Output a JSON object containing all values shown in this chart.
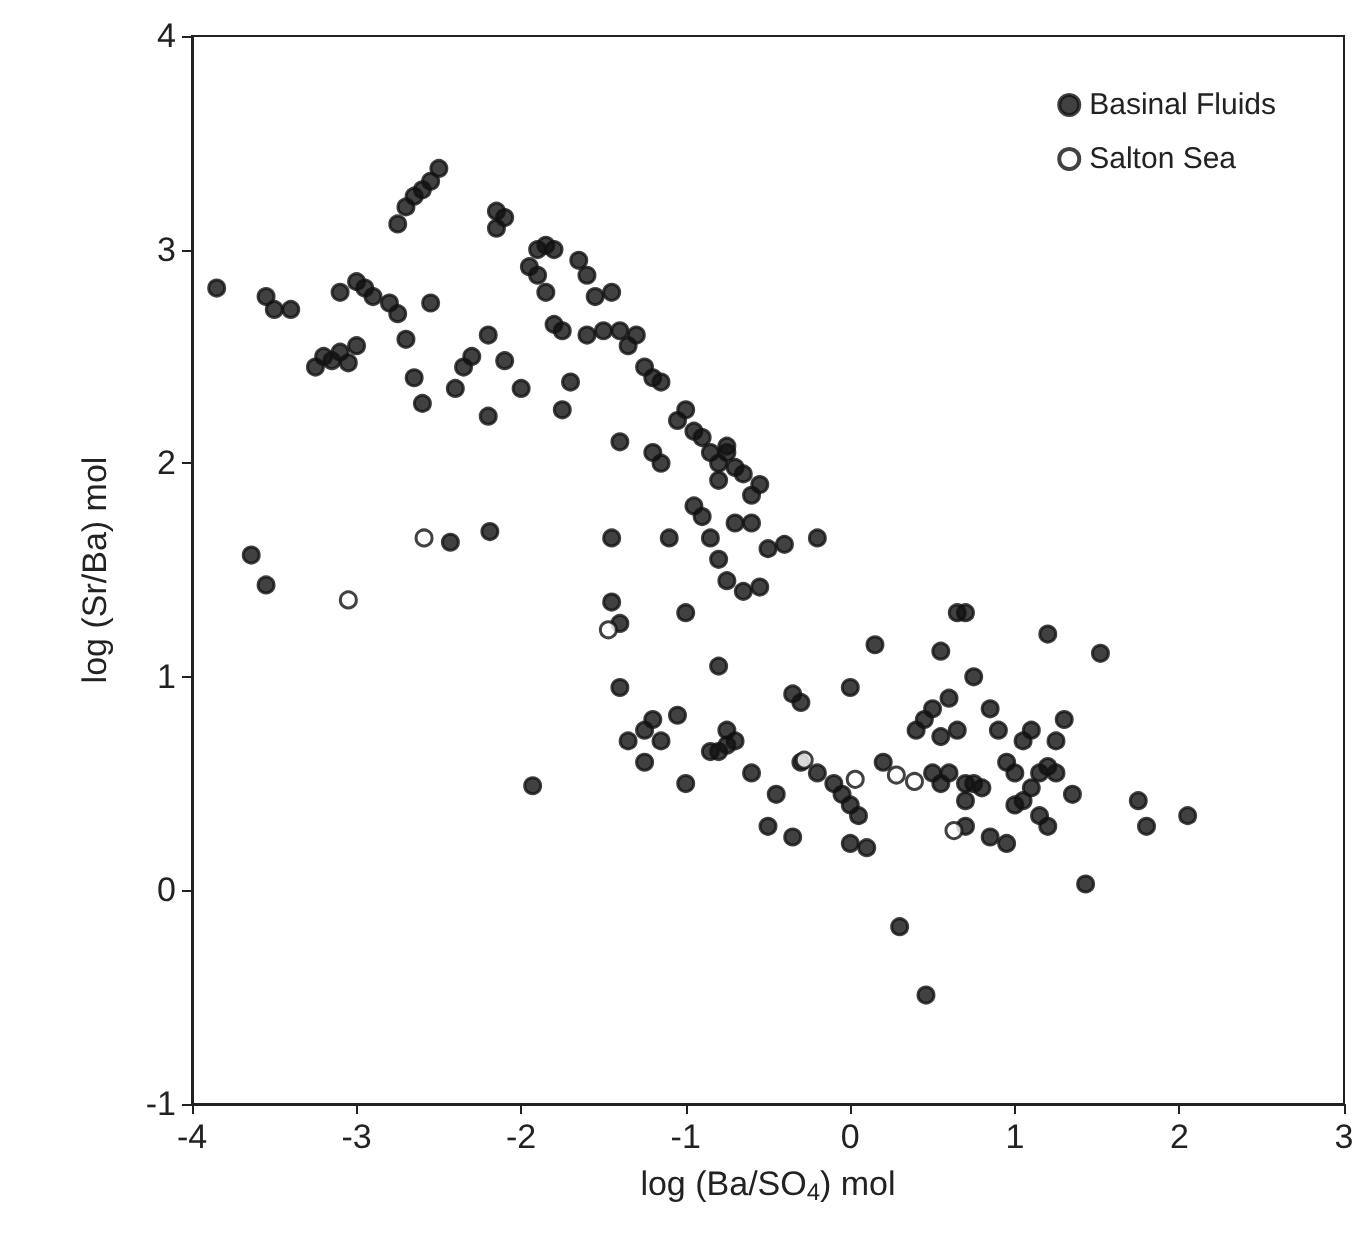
{
  "chart_data": {
    "type": "scatter",
    "xlabel": "log (Ba/SO$_{4}$) mol",
    "ylabel": "log (Sr/Ba) mol",
    "xlim": [
      -4,
      3
    ],
    "ylim": [
      -1,
      4
    ],
    "xticks": [
      -4,
      -3,
      -2,
      -1,
      0,
      1,
      2,
      3
    ],
    "yticks": [
      -1,
      0,
      1,
      2,
      3,
      4
    ],
    "grid": false,
    "legend": "top right",
    "marker": "circle",
    "series": [
      {
        "name": "Basinal Fluids",
        "color": "#111111",
        "x": [
          -3.85,
          -3.55,
          -3.5,
          -3.4,
          -3.64,
          -3.55,
          -3.25,
          -3.2,
          -3.15,
          -3.1,
          -3.05,
          -3.0,
          -3.1,
          -3.0,
          -2.95,
          -2.9,
          -2.8,
          -2.75,
          -2.75,
          -2.7,
          -2.65,
          -2.6,
          -2.55,
          -2.5,
          -2.55,
          -2.7,
          -2.65,
          -2.6,
          -2.4,
          -2.35,
          -2.3,
          -2.43,
          -2.2,
          -2.2,
          -2.15,
          -2.1,
          -2.15,
          -2.1,
          -2.19,
          -2.0,
          -1.95,
          -1.9,
          -1.85,
          -1.8,
          -1.9,
          -1.85,
          -1.8,
          -1.75,
          -1.7,
          -1.75,
          -1.93,
          -1.65,
          -1.6,
          -1.55,
          -1.6,
          -1.5,
          -1.45,
          -1.4,
          -1.35,
          -1.3,
          -1.4,
          -1.45,
          -1.45,
          -1.4,
          -1.4,
          -1.35,
          -1.25,
          -1.2,
          -1.15,
          -1.2,
          -1.15,
          -1.1,
          -1.05,
          -1.0,
          -0.95,
          -0.9,
          -0.85,
          -0.8,
          -0.75,
          -0.7,
          -0.65,
          -0.75,
          -0.8,
          -0.6,
          -0.55,
          -0.95,
          -0.9,
          -0.85,
          -0.8,
          -0.75,
          -0.7,
          -0.6,
          -0.5,
          -0.4,
          -0.2,
          -1.0,
          -0.8,
          -0.75,
          -0.65,
          -0.55,
          -0.35,
          -0.3,
          -1.25,
          -1.25,
          -1.2,
          -1.15,
          -1.05,
          -1.0,
          -0.85,
          -0.8,
          -0.75,
          -0.7,
          -0.6,
          -0.5,
          -0.45,
          -0.35,
          -0.2,
          -0.1,
          -0.05,
          0.0,
          0.05,
          0.1,
          0.0,
          0.15,
          0.2,
          -0.3,
          0.3,
          0.46,
          0.0,
          0.4,
          0.45,
          0.5,
          0.55,
          0.6,
          0.65,
          0.6,
          0.55,
          0.5,
          0.7,
          0.75,
          0.8,
          0.7,
          0.7,
          0.65,
          0.7,
          0.55,
          0.75,
          0.85,
          0.95,
          1.0,
          1.05,
          1.1,
          1.15,
          1.2,
          1.25,
          1.1,
          1.05,
          1.0,
          1.15,
          1.2,
          0.95,
          1.2,
          0.85,
          1.35,
          1.43,
          1.52,
          1.75,
          1.8,
          2.05,
          1.3,
          1.25,
          0.9
        ],
        "values": [
          2.82,
          2.78,
          2.72,
          2.72,
          1.57,
          1.43,
          2.45,
          2.5,
          2.48,
          2.52,
          2.47,
          2.55,
          2.8,
          2.85,
          2.82,
          2.78,
          2.75,
          2.7,
          3.12,
          3.2,
          3.25,
          3.28,
          3.32,
          3.38,
          2.75,
          2.58,
          2.4,
          2.28,
          2.35,
          2.45,
          2.5,
          1.63,
          2.22,
          2.6,
          3.1,
          3.15,
          3.18,
          2.48,
          1.68,
          2.35,
          2.92,
          3.0,
          3.02,
          3.0,
          2.88,
          2.8,
          2.65,
          2.62,
          2.38,
          2.25,
          0.49,
          2.95,
          2.88,
          2.78,
          2.6,
          2.62,
          2.8,
          2.62,
          2.55,
          2.6,
          2.1,
          1.65,
          1.35,
          1.25,
          0.95,
          0.7,
          2.45,
          2.4,
          2.38,
          2.05,
          2.0,
          1.65,
          2.2,
          2.25,
          2.15,
          2.12,
          2.05,
          2.0,
          2.05,
          1.98,
          1.95,
          2.08,
          1.92,
          1.85,
          1.9,
          1.8,
          1.75,
          1.65,
          1.55,
          1.45,
          1.72,
          1.72,
          1.6,
          1.62,
          1.65,
          1.3,
          1.05,
          0.75,
          1.4,
          1.42,
          0.92,
          0.88,
          0.6,
          0.75,
          0.8,
          0.7,
          0.82,
          0.5,
          0.65,
          0.65,
          0.68,
          0.7,
          0.55,
          0.3,
          0.45,
          0.25,
          0.55,
          0.5,
          0.45,
          0.4,
          0.35,
          0.2,
          0.95,
          1.15,
          0.6,
          0.6,
          -0.17,
          -0.49,
          0.22,
          0.75,
          0.8,
          0.85,
          0.72,
          0.9,
          0.75,
          0.55,
          0.5,
          0.55,
          0.5,
          0.5,
          0.48,
          0.42,
          0.3,
          1.3,
          1.3,
          1.12,
          1.0,
          0.85,
          0.6,
          0.55,
          0.7,
          0.75,
          0.55,
          0.58,
          0.55,
          0.48,
          0.42,
          0.4,
          0.35,
          0.3,
          0.22,
          1.2,
          0.25,
          0.45,
          0.03,
          1.11,
          0.42,
          0.3,
          0.35,
          0.8,
          0.7,
          0.75
        ]
      },
      {
        "name": "Salton Sea",
        "color": "#ffffff",
        "x": [
          -3.05,
          -2.59,
          -1.47,
          -0.28,
          0.03,
          0.28,
          0.39,
          0.63
        ],
        "values": [
          1.36,
          1.65,
          1.22,
          0.61,
          0.52,
          0.54,
          0.51,
          0.28
        ]
      }
    ]
  }
}
